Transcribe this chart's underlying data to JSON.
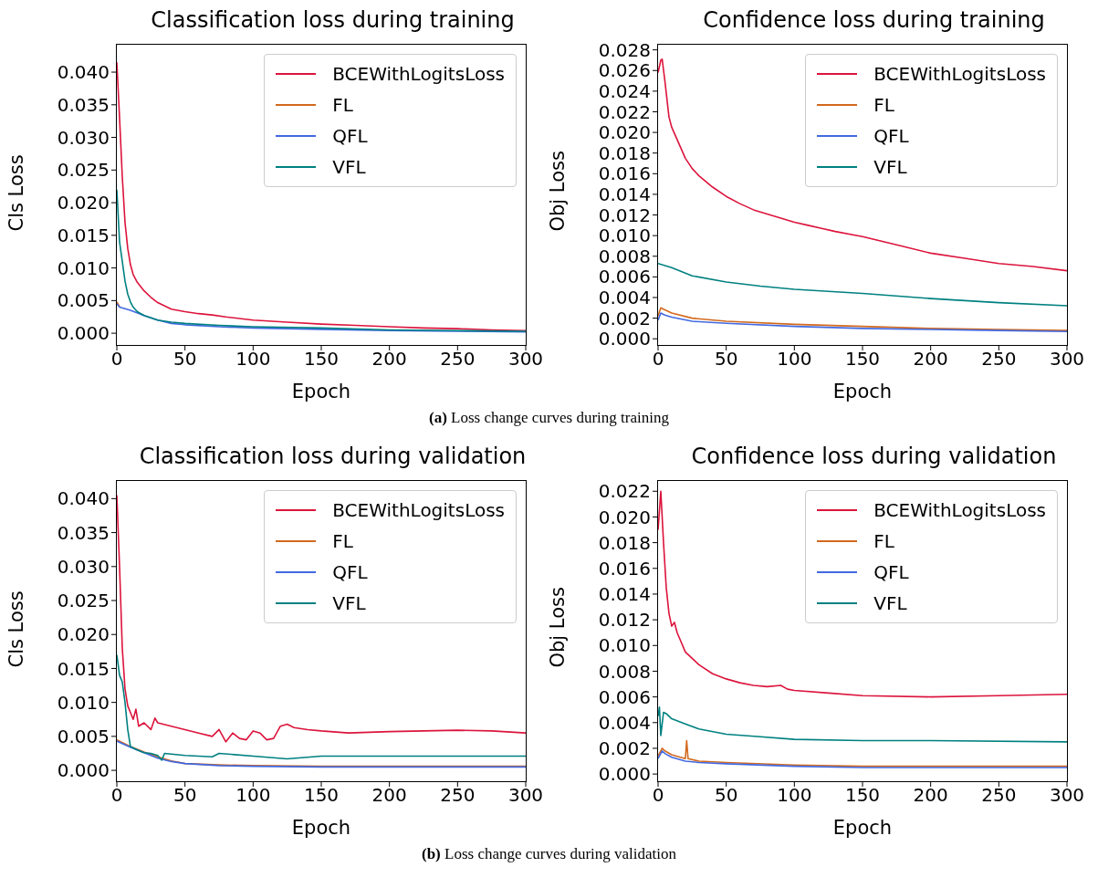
{
  "chart_data": [
    {
      "type": "line",
      "title": "Classification loss during training",
      "xlabel": "Epoch",
      "ylabel": "Cls Loss",
      "xlim": [
        0,
        300
      ],
      "xticks": [
        0,
        50,
        100,
        150,
        200,
        250,
        300
      ],
      "ylim": [
        -0.0018,
        0.0442
      ],
      "yticks": [
        {
          "value": 0,
          "label": "0.000"
        },
        {
          "value": 0.005,
          "label": "0.005"
        },
        {
          "value": 0.01,
          "label": "0.010"
        },
        {
          "value": 0.015,
          "label": "0.015"
        },
        {
          "value": 0.02,
          "label": "0.020"
        },
        {
          "value": 0.025,
          "label": "0.025"
        },
        {
          "value": 0.03,
          "label": "0.030"
        },
        {
          "value": 0.035,
          "label": "0.035"
        },
        {
          "value": 0.04,
          "label": "0.040"
        }
      ],
      "grid": false,
      "legend": "top right",
      "marker": "none",
      "line_style": "solid",
      "annotations": [
        "(a) Loss change curves during training"
      ],
      "series": [
        {
          "name": "BCEWithLogitsLoss",
          "color": "#dc143c",
          "x": [
            0,
            2,
            4,
            6,
            8,
            10,
            12,
            15,
            20,
            25,
            30,
            40,
            50,
            60,
            70,
            80,
            100,
            125,
            150,
            175,
            200,
            225,
            250,
            275,
            300
          ],
          "values": [
            0.0415,
            0.033,
            0.024,
            0.017,
            0.013,
            0.0105,
            0.009,
            0.0078,
            0.0065,
            0.0055,
            0.0047,
            0.0037,
            0.0033,
            0.003,
            0.0028,
            0.0025,
            0.002,
            0.0017,
            0.0014,
            0.0012,
            0.001,
            0.0008,
            0.0007,
            0.0005,
            0.0004
          ]
        },
        {
          "name": "FL",
          "color": "#d2691e",
          "x": [
            0,
            2
          ],
          "values": [
            0.0048,
            0.0041
          ]
        },
        {
          "name": "QFL",
          "color": "#4169e1",
          "x": [
            0,
            2,
            10,
            20,
            30,
            40,
            50,
            75,
            100,
            150,
            200,
            250,
            300
          ],
          "values": [
            0.0045,
            0.004,
            0.0035,
            0.0027,
            0.002,
            0.0015,
            0.0013,
            0.001,
            0.0008,
            0.0006,
            0.0004,
            0.0003,
            0.0002
          ]
        },
        {
          "name": "VFL",
          "color": "#008080",
          "x": [
            0,
            2,
            4,
            6,
            8,
            10,
            12,
            15,
            20,
            30,
            40,
            50,
            75,
            100,
            150,
            200,
            250,
            300
          ],
          "values": [
            0.022,
            0.014,
            0.011,
            0.008,
            0.006,
            0.0048,
            0.004,
            0.0033,
            0.0027,
            0.002,
            0.0017,
            0.0015,
            0.0012,
            0.001,
            0.0008,
            0.0005,
            0.0004,
            0.0003
          ]
        }
      ]
    },
    {
      "type": "line",
      "title": "Confidence loss during training",
      "xlabel": "Epoch",
      "ylabel": "Obj Loss",
      "xlim": [
        0,
        300
      ],
      "xticks": [
        0,
        50,
        100,
        150,
        200,
        250,
        300
      ],
      "ylim": [
        -0.0006,
        0.0285
      ],
      "yticks": [
        {
          "value": 0,
          "label": "0.000"
        },
        {
          "value": 0.002,
          "label": "0.002"
        },
        {
          "value": 0.004,
          "label": "0.004"
        },
        {
          "value": 0.006,
          "label": "0.006"
        },
        {
          "value": 0.008,
          "label": "0.008"
        },
        {
          "value": 0.01,
          "label": "0.010"
        },
        {
          "value": 0.012,
          "label": "0.012"
        },
        {
          "value": 0.014,
          "label": "0.014"
        },
        {
          "value": 0.016,
          "label": "0.016"
        },
        {
          "value": 0.018,
          "label": "0.018"
        },
        {
          "value": 0.02,
          "label": "0.020"
        },
        {
          "value": 0.022,
          "label": "0.022"
        },
        {
          "value": 0.024,
          "label": "0.024"
        },
        {
          "value": 0.026,
          "label": "0.026"
        },
        {
          "value": 0.028,
          "label": "0.028"
        }
      ],
      "grid": false,
      "legend": "top right",
      "marker": "none",
      "line_style": "solid",
      "series": [
        {
          "name": "BCEWithLogitsLoss",
          "color": "#dc143c",
          "x": [
            0,
            2,
            3,
            5,
            8,
            10,
            15,
            20,
            25,
            30,
            40,
            50,
            60,
            70,
            80,
            90,
            100,
            110,
            120,
            130,
            150,
            175,
            200,
            225,
            250,
            275,
            300
          ],
          "values": [
            0.0258,
            0.027,
            0.0271,
            0.025,
            0.0215,
            0.0205,
            0.019,
            0.0175,
            0.0165,
            0.0158,
            0.0147,
            0.0138,
            0.0131,
            0.0125,
            0.0121,
            0.0117,
            0.0113,
            0.011,
            0.0107,
            0.0104,
            0.0099,
            0.0091,
            0.0083,
            0.0078,
            0.0073,
            0.007,
            0.0066
          ]
        },
        {
          "name": "FL",
          "color": "#d2691e",
          "x": [
            0,
            2,
            5,
            10,
            25,
            50,
            100,
            150,
            200,
            250,
            300
          ],
          "values": [
            0.0022,
            0.003,
            0.0028,
            0.0025,
            0.002,
            0.0017,
            0.0014,
            0.0012,
            0.001,
            0.0009,
            0.0008
          ]
        },
        {
          "name": "QFL",
          "color": "#4169e1",
          "x": [
            0,
            2,
            5,
            10,
            25,
            50,
            100,
            150,
            200,
            250,
            300
          ],
          "values": [
            0.0018,
            0.0025,
            0.0023,
            0.0021,
            0.0017,
            0.0015,
            0.0012,
            0.001,
            0.0009,
            0.0008,
            0.0007
          ]
        },
        {
          "name": "VFL",
          "color": "#008080",
          "x": [
            0,
            10,
            25,
            50,
            75,
            100,
            150,
            200,
            250,
            300
          ],
          "values": [
            0.0073,
            0.0069,
            0.0061,
            0.0055,
            0.0051,
            0.0048,
            0.0044,
            0.0039,
            0.0035,
            0.0032
          ]
        }
      ]
    },
    {
      "type": "line",
      "title": "Classification loss during validation",
      "xlabel": "Epoch",
      "ylabel": "Cls Loss",
      "xlim": [
        0,
        300
      ],
      "xticks": [
        0,
        50,
        100,
        150,
        200,
        250,
        300
      ],
      "ylim": [
        -0.0016,
        0.0426
      ],
      "yticks": [
        {
          "value": 0,
          "label": "0.000"
        },
        {
          "value": 0.005,
          "label": "0.005"
        },
        {
          "value": 0.01,
          "label": "0.010"
        },
        {
          "value": 0.015,
          "label": "0.015"
        },
        {
          "value": 0.02,
          "label": "0.020"
        },
        {
          "value": 0.025,
          "label": "0.025"
        },
        {
          "value": 0.03,
          "label": "0.030"
        },
        {
          "value": 0.035,
          "label": "0.035"
        },
        {
          "value": 0.04,
          "label": "0.040"
        }
      ],
      "grid": false,
      "legend": "top right",
      "marker": "none",
      "line_style": "solid",
      "annotations": [
        "(b) Loss change curves during validation"
      ],
      "series": [
        {
          "name": "BCEWithLogitsLoss",
          "color": "#dc143c",
          "x": [
            0,
            2,
            4,
            6,
            8,
            10,
            12,
            14,
            16,
            20,
            25,
            28,
            30,
            40,
            50,
            60,
            70,
            75,
            80,
            85,
            90,
            95,
            100,
            105,
            110,
            115,
            120,
            125,
            130,
            140,
            150,
            170,
            200,
            250,
            275,
            300
          ],
          "values": [
            0.0405,
            0.03,
            0.018,
            0.012,
            0.0095,
            0.0085,
            0.0075,
            0.009,
            0.0065,
            0.007,
            0.006,
            0.0077,
            0.007,
            0.0065,
            0.006,
            0.0055,
            0.005,
            0.006,
            0.0042,
            0.0055,
            0.0047,
            0.0045,
            0.0058,
            0.0055,
            0.0045,
            0.0047,
            0.0065,
            0.0068,
            0.0063,
            0.006,
            0.0058,
            0.0055,
            0.0057,
            0.0059,
            0.0058,
            0.0055
          ]
        },
        {
          "name": "FL",
          "color": "#d2691e",
          "x": [
            0,
            10,
            20,
            30,
            40,
            50,
            75,
            100,
            150,
            200,
            300
          ],
          "values": [
            0.0045,
            0.0035,
            0.0027,
            0.002,
            0.0014,
            0.001,
            0.0008,
            0.0007,
            0.0006,
            0.0006,
            0.0006
          ]
        },
        {
          "name": "QFL",
          "color": "#4169e1",
          "x": [
            0,
            10,
            20,
            30,
            40,
            50,
            75,
            100,
            150,
            200,
            300
          ],
          "values": [
            0.0043,
            0.0034,
            0.0026,
            0.0018,
            0.0013,
            0.001,
            0.0007,
            0.0006,
            0.0005,
            0.0005,
            0.0005
          ]
        },
        {
          "name": "VFL",
          "color": "#008080",
          "x": [
            0,
            2,
            4,
            6,
            8,
            10,
            15,
            20,
            25,
            30,
            33,
            35,
            50,
            70,
            75,
            100,
            125,
            150,
            200,
            250,
            300
          ],
          "values": [
            0.017,
            0.014,
            0.013,
            0.01,
            0.006,
            0.0035,
            0.003,
            0.0026,
            0.0025,
            0.0022,
            0.0015,
            0.0025,
            0.0022,
            0.002,
            0.0025,
            0.0021,
            0.0017,
            0.0021,
            0.0021,
            0.0021,
            0.0021
          ]
        }
      ]
    },
    {
      "type": "line",
      "title": "Confidence loss during validation",
      "xlabel": "Epoch",
      "ylabel": "Obj Loss",
      "xlim": [
        0,
        300
      ],
      "xticks": [
        0,
        50,
        100,
        150,
        200,
        250,
        300
      ],
      "ylim": [
        -0.00056,
        0.0228
      ],
      "yticks": [
        {
          "value": 0,
          "label": "0.000"
        },
        {
          "value": 0.002,
          "label": "0.002"
        },
        {
          "value": 0.004,
          "label": "0.004"
        },
        {
          "value": 0.006,
          "label": "0.006"
        },
        {
          "value": 0.008,
          "label": "0.008"
        },
        {
          "value": 0.01,
          "label": "0.010"
        },
        {
          "value": 0.012,
          "label": "0.012"
        },
        {
          "value": 0.014,
          "label": "0.014"
        },
        {
          "value": 0.016,
          "label": "0.016"
        },
        {
          "value": 0.018,
          "label": "0.018"
        },
        {
          "value": 0.02,
          "label": "0.020"
        },
        {
          "value": 0.022,
          "label": "0.022"
        }
      ],
      "grid": false,
      "legend": "top right",
      "marker": "none",
      "line_style": "solid",
      "series": [
        {
          "name": "BCEWithLogitsLoss",
          "color": "#dc143c",
          "x": [
            0,
            2,
            4,
            6,
            8,
            10,
            12,
            14,
            16,
            20,
            25,
            30,
            40,
            50,
            60,
            70,
            80,
            90,
            95,
            100,
            125,
            150,
            200,
            250,
            300
          ],
          "values": [
            0.019,
            0.022,
            0.018,
            0.0145,
            0.0125,
            0.0115,
            0.0118,
            0.011,
            0.0105,
            0.0095,
            0.009,
            0.0085,
            0.0078,
            0.0074,
            0.0071,
            0.0069,
            0.0068,
            0.0069,
            0.0066,
            0.0065,
            0.0063,
            0.0061,
            0.006,
            0.0061,
            0.0062
          ]
        },
        {
          "name": "FL",
          "color": "#d2691e",
          "x": [
            0,
            3,
            5,
            10,
            20,
            21,
            22,
            30,
            50,
            100,
            150,
            200,
            300
          ],
          "values": [
            0.0014,
            0.002,
            0.0018,
            0.0015,
            0.0012,
            0.0026,
            0.0012,
            0.001,
            0.0009,
            0.0007,
            0.0006,
            0.0006,
            0.0006
          ]
        },
        {
          "name": "QFL",
          "color": "#4169e1",
          "x": [
            0,
            3,
            5,
            10,
            20,
            30,
            50,
            100,
            150,
            200,
            300
          ],
          "values": [
            0.0012,
            0.0018,
            0.0016,
            0.0013,
            0.001,
            0.0009,
            0.0008,
            0.0006,
            0.0005,
            0.0005,
            0.0005
          ]
        },
        {
          "name": "VFL",
          "color": "#008080",
          "x": [
            0,
            1,
            2,
            4,
            6,
            10,
            20,
            30,
            50,
            75,
            100,
            150,
            200,
            300
          ],
          "values": [
            0.0045,
            0.0052,
            0.003,
            0.0048,
            0.0047,
            0.0043,
            0.0039,
            0.0035,
            0.0031,
            0.0029,
            0.0027,
            0.0026,
            0.0026,
            0.0025
          ]
        }
      ]
    }
  ]
}
